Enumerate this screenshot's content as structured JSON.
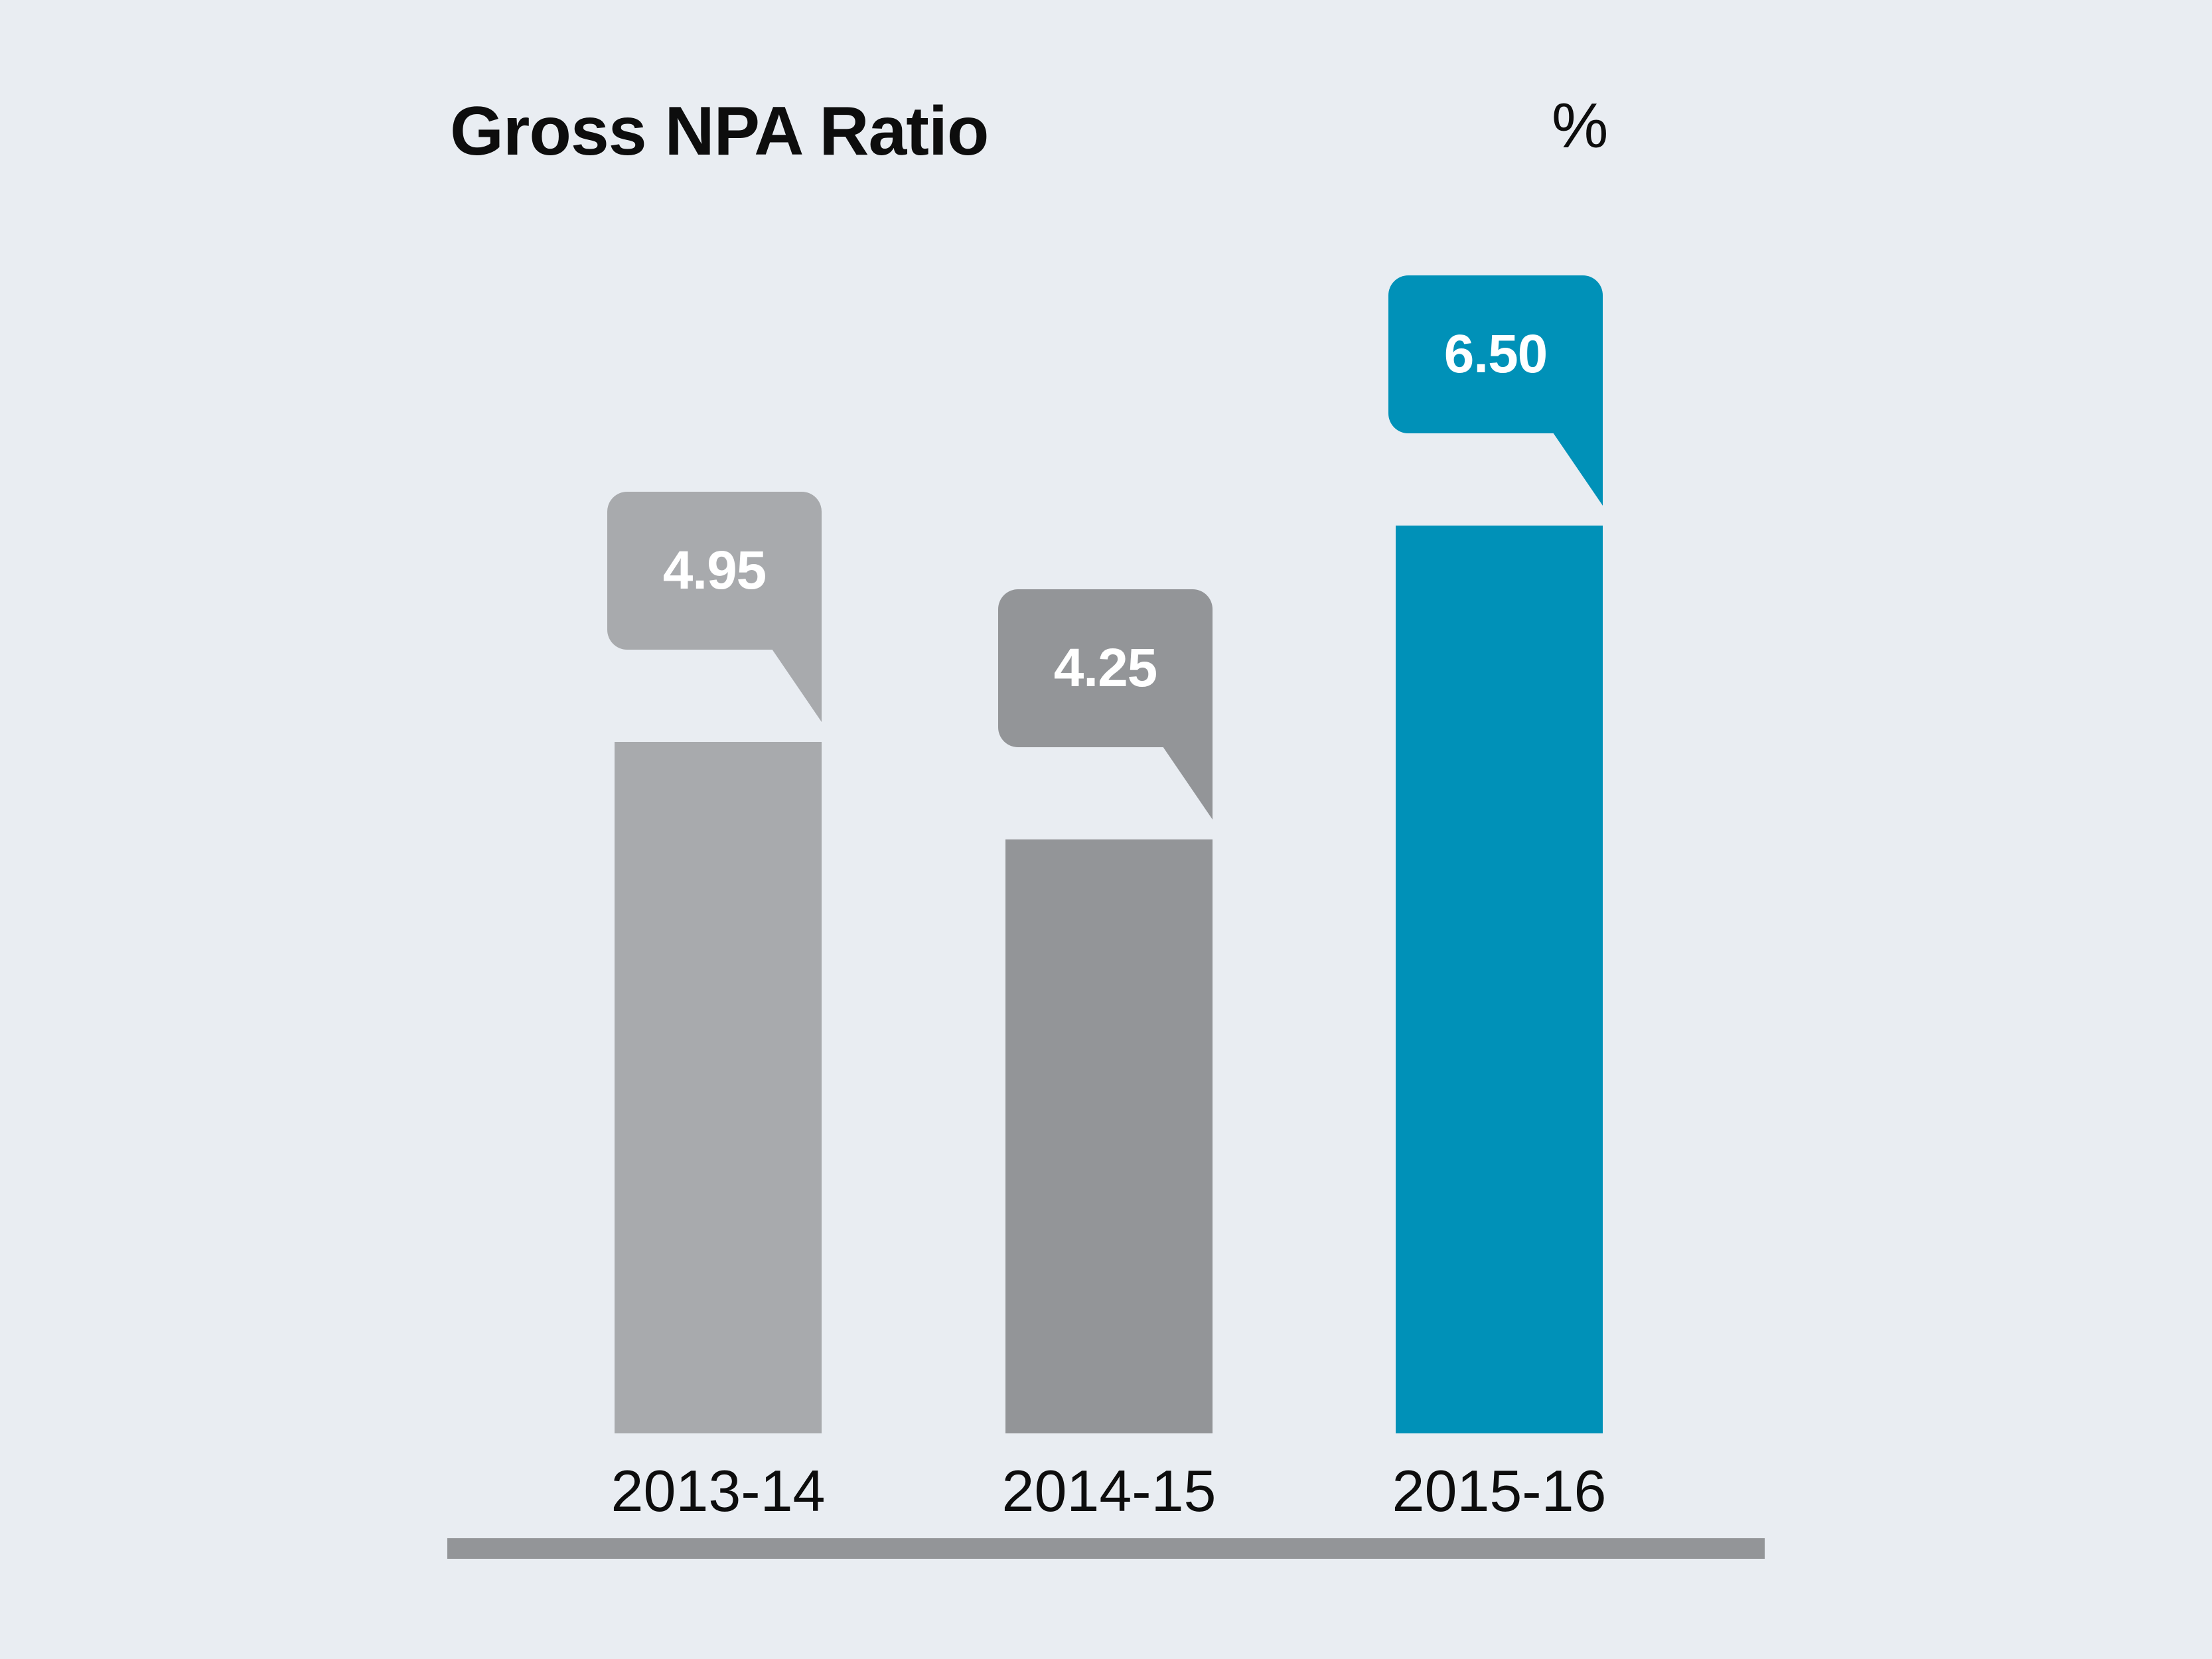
{
  "chart": {
    "title": "Gross NPA Ratio",
    "unit_label": "%"
  },
  "chart_data": {
    "type": "bar",
    "title": "Gross NPA Ratio",
    "unit": "%",
    "categories": [
      "2013-14",
      "2014-15",
      "2015-16"
    ],
    "values": [
      4.95,
      4.25,
      6.5
    ],
    "value_labels": [
      "4.95",
      "4.25",
      "6.50"
    ],
    "series_colors": [
      "#a8aaad",
      "#939598",
      "#0091b8"
    ],
    "highlight_index": 2,
    "ylim": [
      0,
      7
    ],
    "xlabel": "",
    "ylabel": "",
    "grid": false,
    "legend": false,
    "annotation_style": "speech-bubble callout above each bar showing its value"
  },
  "colors": {
    "background": "#e9edf2",
    "axis_line": "#939598",
    "title_text": "#0d0d0d",
    "value_text": "#ffffff"
  }
}
